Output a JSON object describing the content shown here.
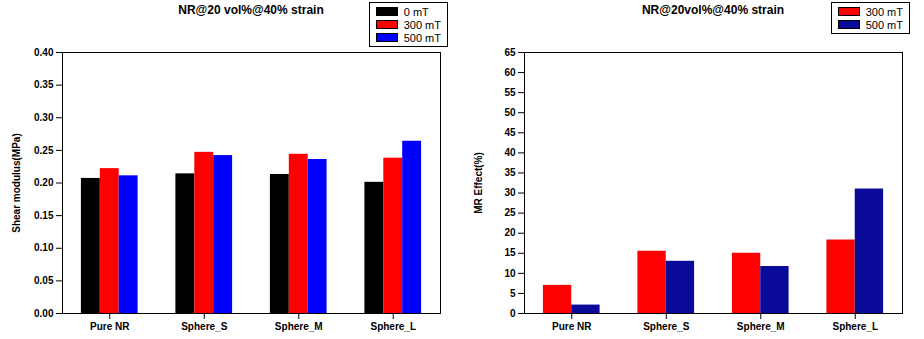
{
  "chart_data": [
    {
      "type": "bar",
      "title": "NR@20 vol%@40% strain",
      "y_label": "Shear modulus(MPa)",
      "categories": [
        "Pure NR",
        "Sphere_S",
        "Sphere_M",
        "Sphere_L"
      ],
      "series": [
        {
          "name": "0 mT",
          "color": "#000000",
          "values": [
            0.207,
            0.214,
            0.213,
            0.201
          ]
        },
        {
          "name": "300 mT",
          "color": "#ff0000",
          "values": [
            0.222,
            0.247,
            0.244,
            0.238
          ]
        },
        {
          "name": "500 mT",
          "color": "#0000ff",
          "values": [
            0.211,
            0.242,
            0.236,
            0.264
          ]
        }
      ],
      "ylim": [
        0,
        0.4
      ],
      "yticks": [
        {
          "value": 0,
          "label": "0.00"
        },
        {
          "value": 0.05,
          "label": "0.05"
        },
        {
          "value": 0.1,
          "label": "0.10"
        },
        {
          "value": 0.15,
          "label": "0.15"
        },
        {
          "value": 0.2,
          "label": "0.20"
        },
        {
          "value": 0.25,
          "label": "0.25"
        },
        {
          "value": 0.3,
          "label": "0.30"
        },
        {
          "value": 0.35,
          "label": "0.35"
        },
        {
          "value": 0.4,
          "label": "0.40"
        }
      ],
      "grid": false,
      "legend": "top-right"
    },
    {
      "type": "bar",
      "title": "NR@20vol%@40% strain",
      "y_label": "MR Effect(%)",
      "categories": [
        "Pure NR",
        "Sphere_S",
        "Sphere_M",
        "Sphere_L"
      ],
      "series": [
        {
          "name": "300 mT",
          "color": "#ff0000",
          "values": [
            7.0,
            15.5,
            15.0,
            18.3
          ]
        },
        {
          "name": "500 mT",
          "color": "#0a0a99",
          "values": [
            2.1,
            13.0,
            11.7,
            31.0
          ]
        }
      ],
      "ylim": [
        0,
        65
      ],
      "yticks": [
        0,
        5,
        10,
        15,
        20,
        25,
        30,
        35,
        40,
        45,
        50,
        55,
        60,
        65
      ],
      "grid": false,
      "legend": "top-right"
    }
  ]
}
